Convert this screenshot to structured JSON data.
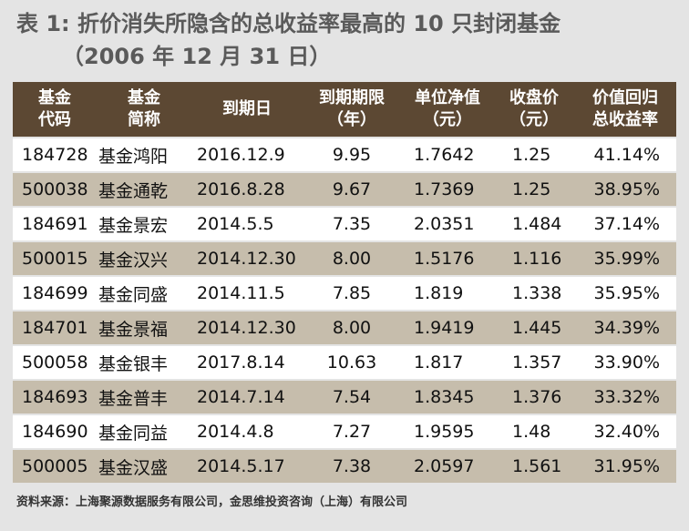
{
  "title": {
    "line1": "表 1: 折价消失所隐含的总收益率最高的 10 只封闭基金",
    "line2": "（2006 年 12 月 31 日）"
  },
  "table": {
    "header": [
      [
        "基金",
        "代码"
      ],
      [
        "基金",
        "简称"
      ],
      [
        "到期日"
      ],
      [
        "到期期限",
        "（年）"
      ],
      [
        "单位净值",
        "（元）"
      ],
      [
        "收盘价",
        "（元）"
      ],
      [
        "价值回归",
        "总收益率"
      ]
    ],
    "rows": [
      [
        "184728",
        "基金鸿阳",
        "2016.12.9",
        "9.95",
        "1.7642",
        "1.25",
        "41.14%"
      ],
      [
        "500038",
        "基金通乾",
        "2016.8.28",
        "9.67",
        "1.7369",
        "1.25",
        "38.95%"
      ],
      [
        "184691",
        "基金景宏",
        "2014.5.5",
        "7.35",
        "2.0351",
        "1.484",
        "37.14%"
      ],
      [
        "500015",
        "基金汉兴",
        "2014.12.30",
        "8.00",
        "1.5176",
        "1.116",
        "35.99%"
      ],
      [
        "184699",
        "基金同盛",
        "2014.11.5",
        "7.85",
        "1.819",
        "1.338",
        "35.95%"
      ],
      [
        "184701",
        "基金景福",
        "2014.12.30",
        "8.00",
        "1.9419",
        "1.445",
        "34.39%"
      ],
      [
        "500058",
        "基金银丰",
        "2017.8.14",
        "10.63",
        "1.817",
        "1.357",
        "33.90%"
      ],
      [
        "184693",
        "基金普丰",
        "2014.7.14",
        "7.54",
        "1.8345",
        "1.376",
        "33.32%"
      ],
      [
        "184690",
        "基金同益",
        "2014.4.8",
        "7.27",
        "1.9595",
        "1.48",
        "32.40%"
      ],
      [
        "500005",
        "基金汉盛",
        "2014.5.17",
        "7.38",
        "2.0597",
        "1.561",
        "31.95%"
      ]
    ]
  },
  "source": "资料来源：上海聚源数据服务有限公司，金思维投资咨询（上海）有限公司"
}
